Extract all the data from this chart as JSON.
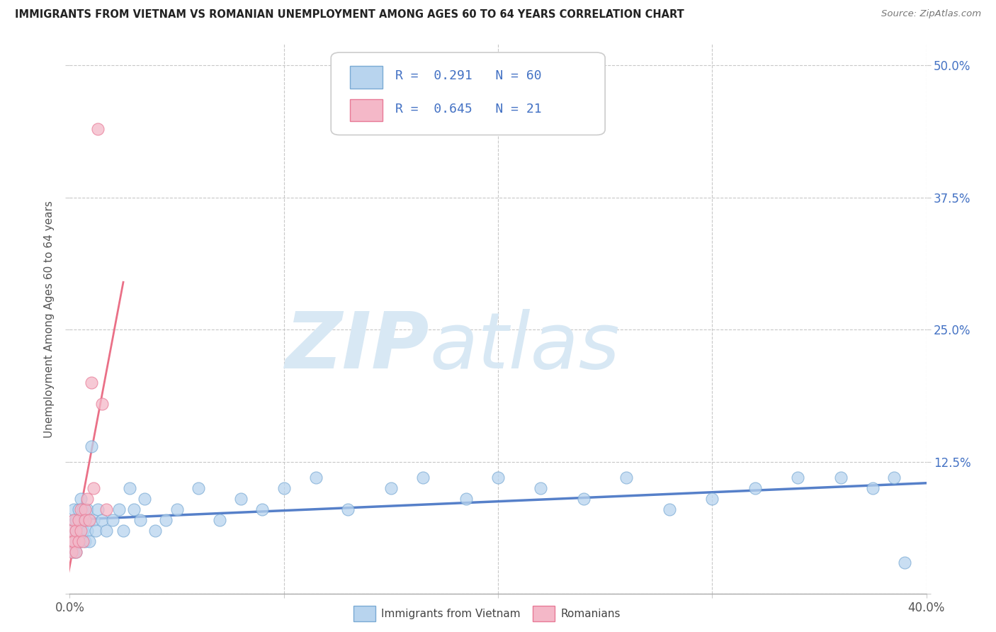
{
  "title": "IMMIGRANTS FROM VIETNAM VS ROMANIAN UNEMPLOYMENT AMONG AGES 60 TO 64 YEARS CORRELATION CHART",
  "source": "Source: ZipAtlas.com",
  "ylabel": "Unemployment Among Ages 60 to 64 years",
  "xlim": [
    0.0,
    0.4
  ],
  "ylim": [
    0.0,
    0.52
  ],
  "xticks": [
    0.0,
    0.1,
    0.2,
    0.3,
    0.4
  ],
  "xtick_labels": [
    "0.0%",
    "",
    "",
    "",
    "40.0%"
  ],
  "yticks": [
    0.0,
    0.125,
    0.25,
    0.375,
    0.5
  ],
  "ytick_labels_right": [
    "",
    "12.5%",
    "25.0%",
    "37.5%",
    "50.0%"
  ],
  "legend_entries": [
    {
      "label": "Immigrants from Vietnam",
      "R": "0.291",
      "N": "60",
      "color": "#b8d4ee",
      "edge_color": "#7aaad4"
    },
    {
      "label": "Romanians",
      "R": "0.645",
      "N": "21",
      "color": "#f4b8c8",
      "edge_color": "#e87a96"
    }
  ],
  "series1_color": "#b8d4ee",
  "series1_edge": "#7aaad4",
  "series2_color": "#f4b8c8",
  "series2_edge": "#e87a96",
  "trend1_color": "#4472c4",
  "trend2_color": "#e8607a",
  "grid_color": "#c8c8c8",
  "background_color": "#ffffff",
  "watermark_zip": "ZIP",
  "watermark_atlas": "atlas",
  "watermark_color": "#d8e8f4",
  "series1_x": [
    0.001,
    0.001,
    0.002,
    0.002,
    0.002,
    0.003,
    0.003,
    0.003,
    0.003,
    0.004,
    0.004,
    0.004,
    0.005,
    0.005,
    0.005,
    0.006,
    0.006,
    0.007,
    0.007,
    0.008,
    0.008,
    0.009,
    0.01,
    0.011,
    0.012,
    0.013,
    0.015,
    0.017,
    0.02,
    0.023,
    0.025,
    0.028,
    0.03,
    0.033,
    0.035,
    0.04,
    0.045,
    0.05,
    0.06,
    0.07,
    0.08,
    0.09,
    0.1,
    0.115,
    0.13,
    0.15,
    0.165,
    0.185,
    0.2,
    0.22,
    0.24,
    0.26,
    0.28,
    0.3,
    0.32,
    0.34,
    0.36,
    0.375,
    0.385,
    0.39
  ],
  "series1_y": [
    0.05,
    0.06,
    0.04,
    0.07,
    0.08,
    0.05,
    0.07,
    0.04,
    0.06,
    0.05,
    0.08,
    0.06,
    0.05,
    0.07,
    0.09,
    0.06,
    0.08,
    0.05,
    0.07,
    0.06,
    0.08,
    0.05,
    0.14,
    0.07,
    0.06,
    0.08,
    0.07,
    0.06,
    0.07,
    0.08,
    0.06,
    0.1,
    0.08,
    0.07,
    0.09,
    0.06,
    0.07,
    0.08,
    0.1,
    0.07,
    0.09,
    0.08,
    0.1,
    0.11,
    0.08,
    0.1,
    0.11,
    0.09,
    0.11,
    0.1,
    0.09,
    0.11,
    0.08,
    0.09,
    0.1,
    0.11,
    0.11,
    0.1,
    0.11,
    0.03
  ],
  "series2_x": [
    0.0005,
    0.001,
    0.001,
    0.002,
    0.002,
    0.003,
    0.003,
    0.004,
    0.004,
    0.005,
    0.005,
    0.006,
    0.007,
    0.007,
    0.008,
    0.009,
    0.01,
    0.011,
    0.013,
    0.015,
    0.017
  ],
  "series2_y": [
    0.05,
    0.04,
    0.06,
    0.05,
    0.07,
    0.04,
    0.06,
    0.05,
    0.07,
    0.06,
    0.08,
    0.05,
    0.08,
    0.07,
    0.09,
    0.07,
    0.2,
    0.1,
    0.44,
    0.18,
    0.08
  ]
}
